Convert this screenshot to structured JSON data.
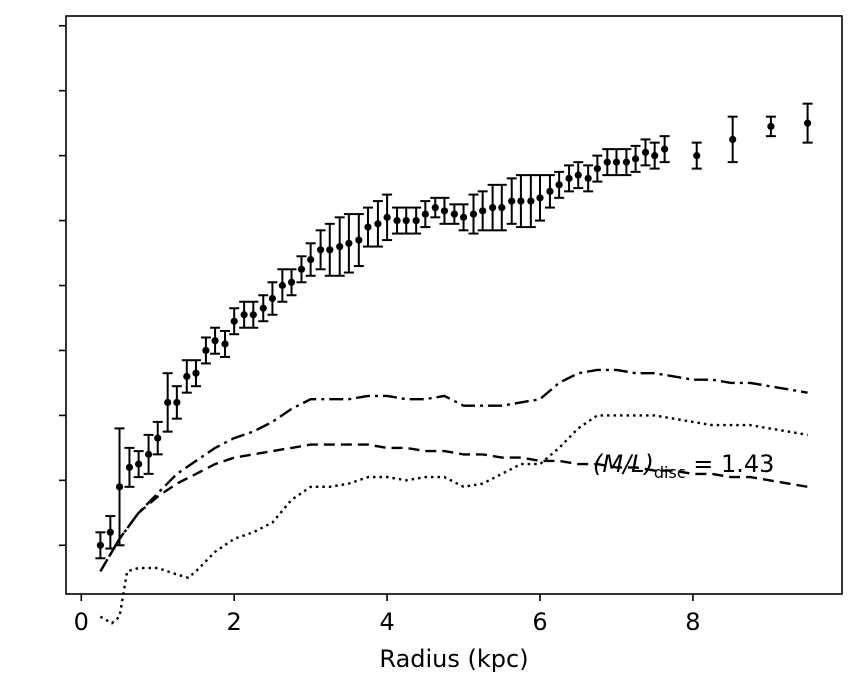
{
  "chart_data": {
    "type": "scatter",
    "title": "",
    "xlabel": "Radius (kpc)",
    "ylabel": "",
    "xlim": [
      -0.2,
      9.95
    ],
    "ylim": [
      -0.15,
      1.63
    ],
    "xticks": [
      0,
      2,
      4,
      6,
      8
    ],
    "yticks": [
      0.0,
      0.2,
      0.4,
      0.6,
      0.8,
      1.0,
      1.2,
      1.4,
      1.6
    ],
    "ytick_labels_shown": false,
    "grid": false,
    "legend": "none",
    "annotation": {
      "prefix": "(M/L)",
      "subscript": "disc",
      "suffix": " = 1.43"
    },
    "series": [
      {
        "kind": "errorbar",
        "color": "#000000",
        "x": [
          0.25,
          0.38,
          0.5,
          0.63,
          0.75,
          0.88,
          1.0,
          1.13,
          1.25,
          1.38,
          1.5,
          1.63,
          1.75,
          1.88,
          2.0,
          2.13,
          2.25,
          2.38,
          2.5,
          2.63,
          2.75,
          2.88,
          3.0,
          3.13,
          3.25,
          3.38,
          3.5,
          3.63,
          3.75,
          3.88,
          4.0,
          4.13,
          4.25,
          4.38,
          4.5,
          4.63,
          4.75,
          4.88,
          5.0,
          5.13,
          5.25,
          5.38,
          5.5,
          5.63,
          5.75,
          5.88,
          6.0,
          6.13,
          6.25,
          6.38,
          6.5,
          6.63,
          6.75,
          6.88,
          7.0,
          7.13,
          7.25,
          7.38,
          7.5,
          7.63,
          8.05,
          8.52,
          9.02,
          9.5
        ],
        "y": [
          0.0,
          0.04,
          0.18,
          0.24,
          0.25,
          0.28,
          0.33,
          0.44,
          0.44,
          0.52,
          0.53,
          0.6,
          0.63,
          0.62,
          0.69,
          0.71,
          0.71,
          0.73,
          0.76,
          0.8,
          0.81,
          0.85,
          0.88,
          0.91,
          0.91,
          0.92,
          0.93,
          0.94,
          0.98,
          0.99,
          1.01,
          1.0,
          1.0,
          1.0,
          1.02,
          1.04,
          1.03,
          1.02,
          1.01,
          1.02,
          1.03,
          1.04,
          1.04,
          1.06,
          1.06,
          1.06,
          1.07,
          1.09,
          1.11,
          1.13,
          1.14,
          1.13,
          1.16,
          1.18,
          1.18,
          1.18,
          1.19,
          1.21,
          1.2,
          1.22,
          1.2,
          1.25,
          1.29,
          1.3
        ],
        "err": [
          0.04,
          0.05,
          0.18,
          0.06,
          0.04,
          0.06,
          0.05,
          0.09,
          0.05,
          0.05,
          0.04,
          0.04,
          0.04,
          0.04,
          0.04,
          0.04,
          0.04,
          0.04,
          0.05,
          0.05,
          0.04,
          0.04,
          0.05,
          0.06,
          0.08,
          0.09,
          0.09,
          0.08,
          0.06,
          0.07,
          0.07,
          0.04,
          0.04,
          0.04,
          0.04,
          0.03,
          0.04,
          0.03,
          0.04,
          0.06,
          0.06,
          0.07,
          0.07,
          0.07,
          0.08,
          0.08,
          0.07,
          0.05,
          0.04,
          0.04,
          0.04,
          0.04,
          0.04,
          0.04,
          0.04,
          0.04,
          0.04,
          0.04,
          0.04,
          0.04,
          0.04,
          0.07,
          0.03,
          0.06
        ]
      },
      {
        "kind": "line",
        "style": "dashdot",
        "x": [
          0.25,
          0.5,
          0.75,
          1.0,
          1.25,
          1.5,
          1.75,
          2.0,
          2.25,
          2.5,
          2.75,
          3.0,
          3.25,
          3.5,
          3.75,
          4.0,
          4.25,
          4.5,
          4.75,
          5.0,
          5.25,
          5.5,
          5.75,
          6.0,
          6.25,
          6.5,
          6.75,
          7.0,
          7.25,
          7.5,
          7.75,
          8.0,
          8.25,
          8.5,
          8.75,
          9.0,
          9.25,
          9.5
        ],
        "y": [
          -0.08,
          0.02,
          0.1,
          0.16,
          0.22,
          0.26,
          0.3,
          0.33,
          0.35,
          0.38,
          0.42,
          0.45,
          0.45,
          0.45,
          0.46,
          0.46,
          0.45,
          0.45,
          0.46,
          0.43,
          0.43,
          0.43,
          0.44,
          0.45,
          0.5,
          0.53,
          0.54,
          0.54,
          0.53,
          0.53,
          0.52,
          0.51,
          0.51,
          0.5,
          0.5,
          0.49,
          0.48,
          0.47
        ]
      },
      {
        "kind": "line",
        "style": "dashed",
        "x": [
          0.25,
          0.5,
          0.75,
          1.0,
          1.25,
          1.5,
          1.75,
          2.0,
          2.25,
          2.5,
          2.75,
          3.0,
          3.25,
          3.5,
          3.75,
          4.0,
          4.25,
          4.5,
          4.75,
          5.0,
          5.25,
          5.5,
          5.75,
          6.0,
          6.25,
          6.5,
          6.75,
          7.0,
          7.25,
          7.5,
          7.75,
          8.0,
          8.25,
          8.5,
          8.75,
          9.0,
          9.25,
          9.5
        ],
        "y": [
          -0.08,
          0.02,
          0.1,
          0.15,
          0.19,
          0.22,
          0.25,
          0.27,
          0.28,
          0.29,
          0.3,
          0.31,
          0.31,
          0.31,
          0.31,
          0.3,
          0.3,
          0.29,
          0.29,
          0.28,
          0.28,
          0.27,
          0.27,
          0.26,
          0.26,
          0.25,
          0.25,
          0.24,
          0.24,
          0.23,
          0.23,
          0.22,
          0.22,
          0.21,
          0.21,
          0.2,
          0.19,
          0.18
        ]
      },
      {
        "kind": "line",
        "style": "dotted",
        "x": [
          0.25,
          0.4,
          0.5,
          0.6,
          0.75,
          1.0,
          1.25,
          1.4,
          1.5,
          1.75,
          2.0,
          2.25,
          2.5,
          2.75,
          3.0,
          3.25,
          3.5,
          3.75,
          4.0,
          4.25,
          4.5,
          4.75,
          5.0,
          5.25,
          5.5,
          5.75,
          6.0,
          6.25,
          6.5,
          6.75,
          7.0,
          7.25,
          7.5,
          7.75,
          8.0,
          8.25,
          8.5,
          8.75,
          9.0,
          9.25,
          9.5
        ],
        "y": [
          -0.22,
          -0.24,
          -0.22,
          -0.08,
          -0.07,
          -0.07,
          -0.09,
          -0.1,
          -0.08,
          -0.02,
          0.02,
          0.04,
          0.07,
          0.14,
          0.18,
          0.18,
          0.19,
          0.21,
          0.21,
          0.2,
          0.21,
          0.21,
          0.18,
          0.19,
          0.22,
          0.25,
          0.25,
          0.3,
          0.36,
          0.4,
          0.4,
          0.4,
          0.4,
          0.39,
          0.38,
          0.37,
          0.37,
          0.37,
          0.36,
          0.35,
          0.34
        ]
      }
    ]
  }
}
